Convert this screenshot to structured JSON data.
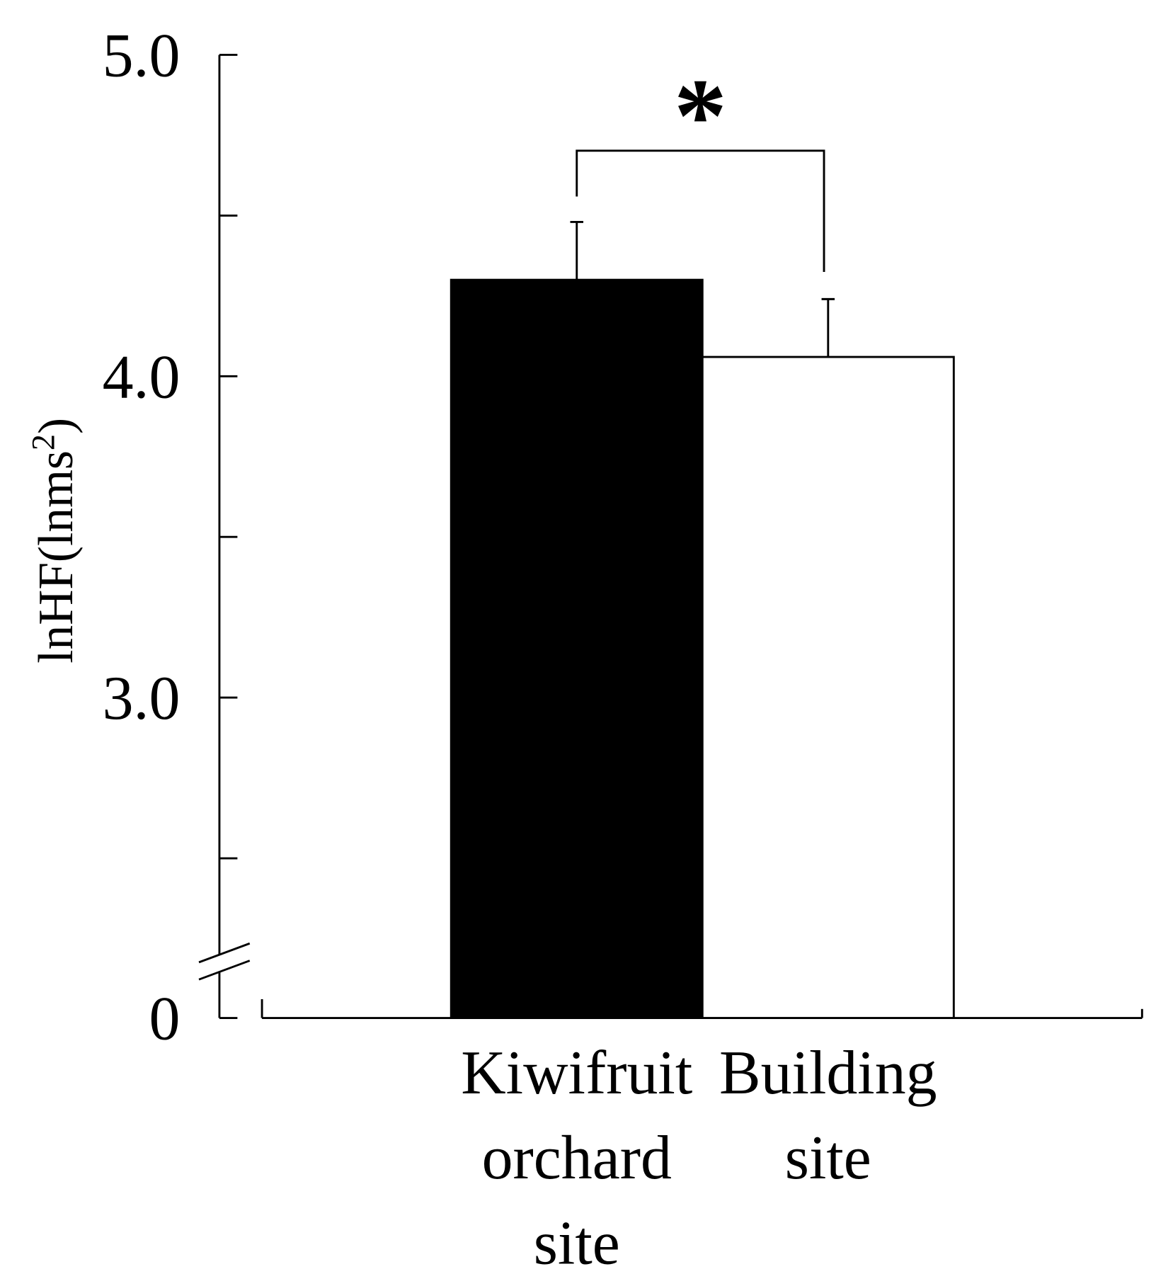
{
  "chart_data": {
    "type": "bar",
    "y_label": {
      "text": "lnHF(lnms",
      "superscript": "2",
      "suffix": ")"
    },
    "categories": [
      "Kiwifruit orchard site",
      "Building site"
    ],
    "values": [
      4.3,
      4.06
    ],
    "errors": [
      0.18,
      0.18
    ],
    "colors": [
      "#000000",
      "#ffffff"
    ],
    "ylim": [
      0,
      5
    ],
    "yticks": [
      {
        "value": 0,
        "label": "0"
      },
      {
        "value": 3,
        "label": "3.0"
      },
      {
        "value": 4,
        "label": "4.0"
      },
      {
        "value": 5,
        "label": "5.0"
      }
    ],
    "minor_yticks": [
      2.5,
      3.5,
      4.5
    ],
    "axis_break": true,
    "significance": {
      "label": "*",
      "between": [
        0,
        1
      ]
    }
  }
}
